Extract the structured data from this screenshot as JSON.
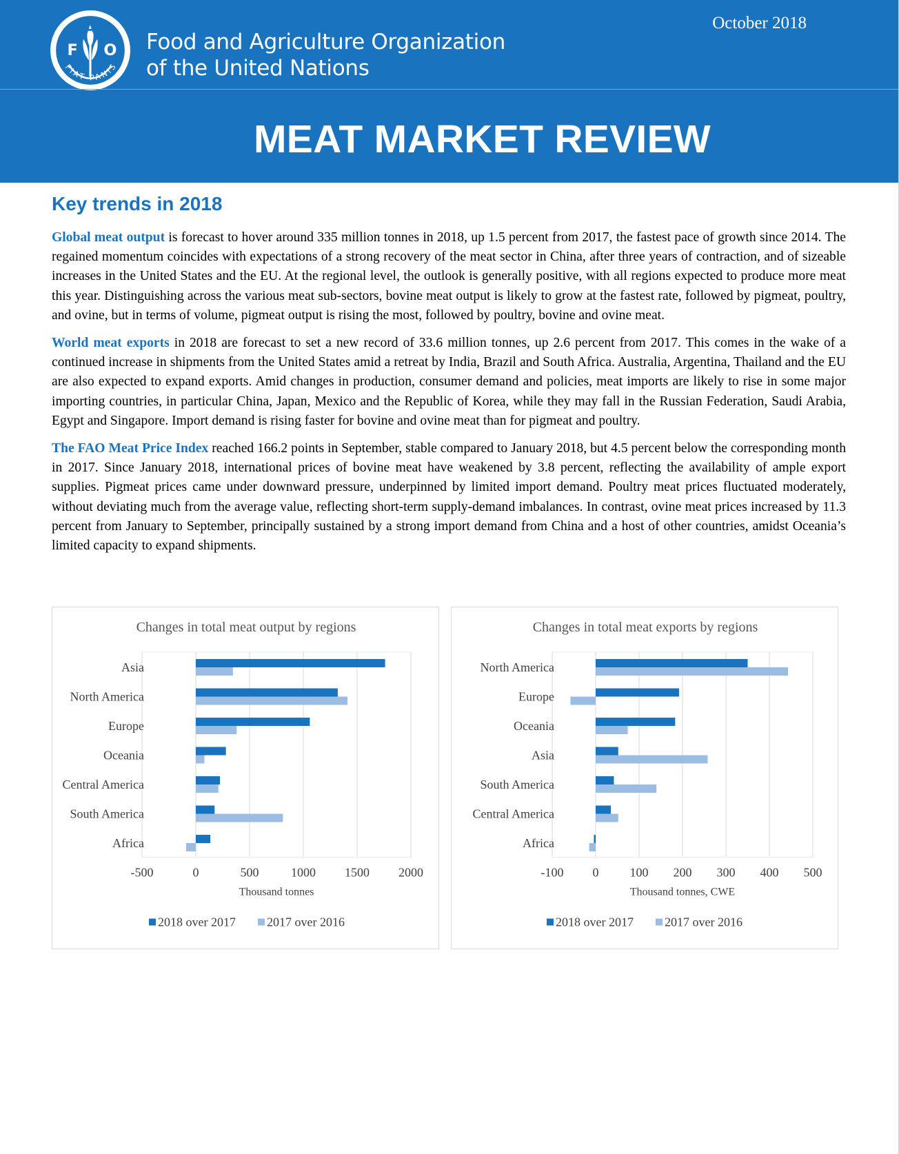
{
  "header": {
    "org_line1": "Food and Agriculture Organization",
    "org_line2": "of the United Nations",
    "date": "October 2018",
    "title": "MEAT MARKET REVIEW",
    "logo": {
      "letters": [
        "F",
        "A",
        "O"
      ],
      "motto": "FIAT PANIS"
    }
  },
  "section_title": "Key trends in 2018",
  "paragraphs": [
    {
      "lead": "Global meat output",
      "body": " is forecast to hover around 335 million tonnes in 2018, up 1.5 percent from 2017, the fastest pace of growth since 2014. The regained momentum coincides with expectations of a strong recovery of the meat sector in China, after three years of contraction, and of sizeable increases in the United States and the EU. At the regional level, the outlook is generally positive, with all regions expected to produce more meat this year. Distinguishing across the various meat sub-sectors, bovine meat output is likely to grow at the fastest rate, followed by pigmeat, poultry, and ovine, but in terms of volume, pigmeat output is rising the most, followed by poultry, bovine and ovine meat."
    },
    {
      "lead": "World meat exports",
      "body": " in 2018 are forecast to set a new record of 33.6 million tonnes, up 2.6 percent from 2017. This comes in the wake of a continued increase in shipments from the United States amid a retreat by India, Brazil and South Africa. Australia, Argentina, Thailand and the EU are also expected to expand exports. Amid changes in production, consumer demand and policies, meat imports are likely to rise in some major importing countries, in particular China, Japan, Mexico and the Republic of Korea, while they may fall in the Russian Federation, Saudi Arabia, Egypt and Singapore. Import demand is rising faster for bovine and ovine meat than for pigmeat and poultry."
    },
    {
      "lead": "The FAO Meat Price Index",
      "body": " reached 166.2 points in September, stable compared to January 2018, but 4.5 percent below the corresponding month in 2017. Since January 2018, international prices of bovine meat have weakened by 3.8 percent, reflecting the availability of ample export supplies. Pigmeat prices came under downward pressure, underpinned by limited import demand. Poultry meat prices fluctuated moderately, without deviating much from the average value, reflecting short-term supply-demand imbalances. In contrast, ovine meat prices increased by 11.3 percent from January to September, principally sustained by a strong import demand from China and a host of other countries, amidst Oceania’s limited capacity to expand shipments."
    }
  ],
  "colors": {
    "brand": "#1a73bf",
    "series_dark": "#1a73bf",
    "series_light": "#9bbde4"
  },
  "chart_data": [
    {
      "type": "bar",
      "orientation": "horizontal",
      "title": "Changes in total meat output by regions",
      "xlabel": "Thousand tonnes",
      "ylabel": "",
      "categories": [
        "Asia",
        "North America",
        "Europe",
        "Oceania",
        "Central America",
        "South America",
        "Africa"
      ],
      "series": [
        {
          "name": "2018 over 2017",
          "values": [
            1760,
            1320,
            1060,
            280,
            225,
            175,
            135
          ]
        },
        {
          "name": "2017 over 2016",
          "values": [
            345,
            1410,
            380,
            80,
            210,
            810,
            -90
          ]
        }
      ],
      "xlim": [
        -500,
        2000
      ],
      "xticks": [
        "-500",
        "0",
        "500",
        "1000",
        "1500",
        "2000"
      ],
      "gridlines": true,
      "legend": "bottom"
    },
    {
      "type": "bar",
      "orientation": "horizontal",
      "title": "Changes in total meat exports by regions",
      "xlabel": "Thousand tonnes, CWE",
      "ylabel": "",
      "categories": [
        "North America",
        "Europe",
        "Oceania",
        "Asia",
        "South America",
        "Central America",
        "Africa"
      ],
      "series": [
        {
          "name": "2018 over 2017",
          "values": [
            350,
            192,
            183,
            52,
            42,
            35,
            -4
          ]
        },
        {
          "name": "2017 over 2016",
          "values": [
            443,
            -58,
            74,
            258,
            140,
            52,
            -15
          ]
        }
      ],
      "xlim": [
        -100,
        500
      ],
      "xticks": [
        "-100",
        "0",
        "100",
        "200",
        "300",
        "400",
        "500"
      ],
      "gridlines": true,
      "legend": "bottom"
    }
  ]
}
